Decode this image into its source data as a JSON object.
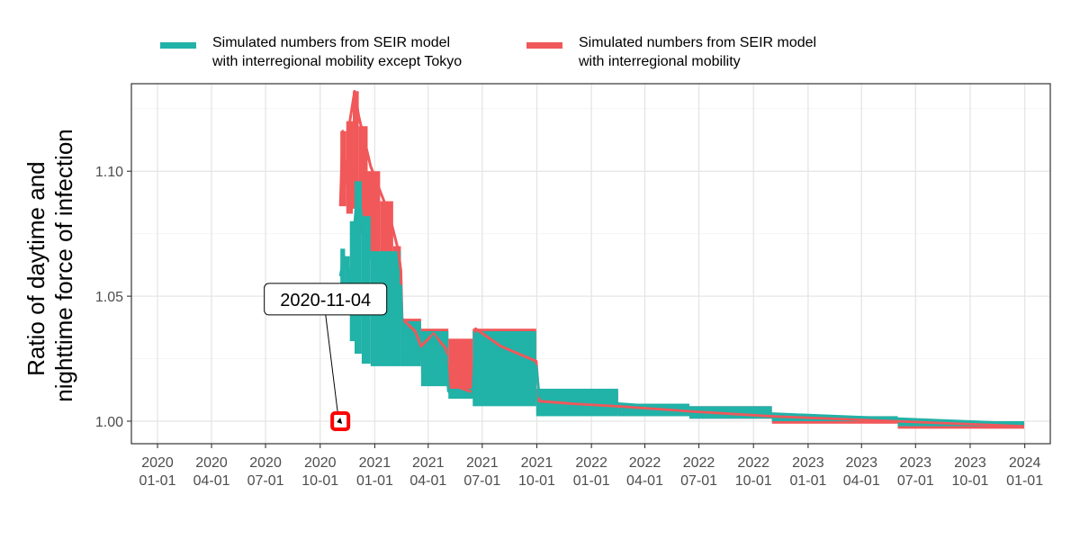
{
  "chart_data": {
    "type": "line",
    "ylabel_lines": [
      "Ratio of daytime and",
      "nighttime force of infection"
    ],
    "xlabel": "",
    "ylim": [
      0.991,
      1.135
    ],
    "xlim": [
      "2019-11-18",
      "2024-02-13"
    ],
    "grid": true,
    "legend_position": "top",
    "yticks": [
      {
        "value": 1.0,
        "label": "1.00"
      },
      {
        "value": 1.05,
        "label": "1.05"
      },
      {
        "value": 1.1,
        "label": "1.10"
      }
    ],
    "xticks": [
      {
        "date": "2020-01-01",
        "label": [
          "2020",
          "01-01"
        ]
      },
      {
        "date": "2020-04-01",
        "label": [
          "2020",
          "04-01"
        ]
      },
      {
        "date": "2020-07-01",
        "label": [
          "2020",
          "07-01"
        ]
      },
      {
        "date": "2020-10-01",
        "label": [
          "2020",
          "10-01"
        ]
      },
      {
        "date": "2021-01-01",
        "label": [
          "2021",
          "01-01"
        ]
      },
      {
        "date": "2021-04-01",
        "label": [
          "2021",
          "04-01"
        ]
      },
      {
        "date": "2021-07-01",
        "label": [
          "2021",
          "07-01"
        ]
      },
      {
        "date": "2021-10-01",
        "label": [
          "2021",
          "10-01"
        ]
      },
      {
        "date": "2022-01-01",
        "label": [
          "2022",
          "01-01"
        ]
      },
      {
        "date": "2022-04-01",
        "label": [
          "2022",
          "04-01"
        ]
      },
      {
        "date": "2022-07-01",
        "label": [
          "2022",
          "07-01"
        ]
      },
      {
        "date": "2022-10-01",
        "label": [
          "2022",
          "10-01"
        ]
      },
      {
        "date": "2023-01-01",
        "label": [
          "2023",
          "01-01"
        ]
      },
      {
        "date": "2023-04-01",
        "label": [
          "2023",
          "04-01"
        ]
      },
      {
        "date": "2023-07-01",
        "label": [
          "2023",
          "07-01"
        ]
      },
      {
        "date": "2023-10-01",
        "label": [
          "2023",
          "10-01"
        ]
      },
      {
        "date": "2024-01-01",
        "label": [
          "2024",
          "01-01"
        ]
      }
    ],
    "series": [
      {
        "name_lines": [
          "Simulated numbers from SEIR model",
          "with interregional mobility"
        ],
        "color": "#F0585A",
        "bands": [
          {
            "start": "2020-11-04",
            "end": "2020-11-14",
            "low": 1.086,
            "high": 1.116
          },
          {
            "start": "2020-11-14",
            "end": "2020-11-25",
            "low": 1.083,
            "high": 1.12
          },
          {
            "start": "2020-11-25",
            "end": "2020-12-05",
            "low": 1.085,
            "high": 1.132
          },
          {
            "start": "2020-12-05",
            "end": "2020-12-20",
            "low": 1.075,
            "high": 1.118
          },
          {
            "start": "2020-12-20",
            "end": "2021-01-10",
            "low": 1.066,
            "high": 1.1
          },
          {
            "start": "2021-01-10",
            "end": "2021-02-01",
            "low": 1.06,
            "high": 1.088
          },
          {
            "start": "2021-02-01",
            "end": "2021-02-14",
            "low": 1.058,
            "high": 1.07
          },
          {
            "start": "2021-02-14",
            "end": "2021-03-20",
            "low": 1.024,
            "high": 1.041
          },
          {
            "start": "2021-03-20",
            "end": "2021-05-05",
            "low": 1.019,
            "high": 1.037
          },
          {
            "start": "2021-05-05",
            "end": "2021-06-15",
            "low": 1.011,
            "high": 1.033
          },
          {
            "start": "2021-06-15",
            "end": "2021-09-30",
            "low": 1.009,
            "high": 1.037
          },
          {
            "start": "2021-09-30",
            "end": "2022-02-15",
            "low": 1.003,
            "high": 1.012
          },
          {
            "start": "2022-02-15",
            "end": "2022-06-15",
            "low": 1.002,
            "high": 1.007
          },
          {
            "start": "2022-06-15",
            "end": "2022-11-01",
            "low": 1.001,
            "high": 1.006
          },
          {
            "start": "2022-11-01",
            "end": "2023-06-01",
            "low": 0.999,
            "high": 1.002
          },
          {
            "start": "2023-06-01",
            "end": "2023-12-31",
            "low": 0.997,
            "high": 1.0
          }
        ],
        "points": [
          {
            "date": "2020-11-04",
            "value": 1.086
          },
          {
            "date": "2020-11-08",
            "value": 1.116
          },
          {
            "date": "2020-11-14",
            "value": 1.095
          },
          {
            "date": "2020-11-20",
            "value": 1.12
          },
          {
            "date": "2020-11-28",
            "value": 1.132
          },
          {
            "date": "2020-12-05",
            "value": 1.122
          },
          {
            "date": "2020-12-15",
            "value": 1.112
          },
          {
            "date": "2020-12-25",
            "value": 1.102
          },
          {
            "date": "2021-01-10",
            "value": 1.092
          },
          {
            "date": "2021-01-25",
            "value": 1.083
          },
          {
            "date": "2021-02-10",
            "value": 1.068
          },
          {
            "date": "2021-02-14",
            "value": 1.06
          },
          {
            "date": "2021-02-16",
            "value": 1.041
          },
          {
            "date": "2021-03-10",
            "value": 1.036
          },
          {
            "date": "2021-03-20",
            "value": 1.03
          },
          {
            "date": "2021-04-10",
            "value": 1.035
          },
          {
            "date": "2021-05-01",
            "value": 1.029
          },
          {
            "date": "2021-05-05",
            "value": 1.015
          },
          {
            "date": "2021-06-10",
            "value": 1.012
          },
          {
            "date": "2021-06-15",
            "value": 1.011
          },
          {
            "date": "2021-06-20",
            "value": 1.037
          },
          {
            "date": "2021-08-01",
            "value": 1.03
          },
          {
            "date": "2021-09-30",
            "value": 1.024
          },
          {
            "date": "2021-10-05",
            "value": 1.008
          },
          {
            "date": "2021-12-01",
            "value": 1.007
          },
          {
            "date": "2022-02-15",
            "value": 1.006
          },
          {
            "date": "2022-06-15",
            "value": 1.004
          },
          {
            "date": "2022-11-01",
            "value": 1.002
          },
          {
            "date": "2023-06-01",
            "value": 1.0
          },
          {
            "date": "2023-12-31",
            "value": 0.998
          }
        ]
      },
      {
        "name_lines": [
          "Simulated numbers from SEIR model",
          "with interregional mobility except Tokyo"
        ],
        "color": "#21B2A8",
        "bands": [
          {
            "start": "2020-11-04",
            "end": "2020-11-12",
            "low": 1.052,
            "high": 1.069
          },
          {
            "start": "2020-11-12",
            "end": "2020-11-20",
            "low": 1.044,
            "high": 1.066
          },
          {
            "start": "2020-11-20",
            "end": "2020-11-28",
            "low": 1.032,
            "high": 1.08
          },
          {
            "start": "2020-11-28",
            "end": "2020-12-10",
            "low": 1.027,
            "high": 1.096
          },
          {
            "start": "2020-12-10",
            "end": "2020-12-25",
            "low": 1.023,
            "high": 1.082
          },
          {
            "start": "2020-12-25",
            "end": "2021-02-14",
            "low": 1.022,
            "high": 1.068
          },
          {
            "start": "2021-02-14",
            "end": "2021-03-20",
            "low": 1.022,
            "high": 1.04
          },
          {
            "start": "2021-03-20",
            "end": "2021-05-05",
            "low": 1.014,
            "high": 1.036
          },
          {
            "start": "2021-05-05",
            "end": "2021-06-15",
            "low": 1.009,
            "high": 1.013
          },
          {
            "start": "2021-06-15",
            "end": "2021-09-30",
            "low": 1.006,
            "high": 1.036
          },
          {
            "start": "2021-09-30",
            "end": "2022-02-15",
            "low": 1.002,
            "high": 1.013
          },
          {
            "start": "2022-02-15",
            "end": "2022-06-15",
            "low": 1.002,
            "high": 1.007
          },
          {
            "start": "2022-06-15",
            "end": "2022-11-01",
            "low": 1.001,
            "high": 1.006
          },
          {
            "start": "2022-11-01",
            "end": "2023-06-01",
            "low": 1.0,
            "high": 1.002
          },
          {
            "start": "2023-06-01",
            "end": "2023-12-31",
            "low": 0.998,
            "high": 1.0
          }
        ],
        "points": [
          {
            "date": "2020-11-04",
            "value": 1.058
          },
          {
            "date": "2020-11-10",
            "value": 1.066
          },
          {
            "date": "2020-11-20",
            "value": 1.054
          },
          {
            "date": "2020-11-26",
            "value": 1.072
          },
          {
            "date": "2020-12-03",
            "value": 1.094
          },
          {
            "date": "2020-12-12",
            "value": 1.078
          },
          {
            "date": "2020-12-25",
            "value": 1.066
          },
          {
            "date": "2021-01-15",
            "value": 1.058
          },
          {
            "date": "2021-02-14",
            "value": 1.054
          },
          {
            "date": "2021-02-16",
            "value": 1.039
          },
          {
            "date": "2021-03-10",
            "value": 1.033
          },
          {
            "date": "2021-03-20",
            "value": 1.026
          },
          {
            "date": "2021-04-10",
            "value": 1.034
          },
          {
            "date": "2021-05-01",
            "value": 1.026
          },
          {
            "date": "2021-05-05",
            "value": 1.012
          },
          {
            "date": "2021-06-10",
            "value": 1.011
          },
          {
            "date": "2021-06-15",
            "value": 1.01
          },
          {
            "date": "2021-06-20",
            "value": 1.035
          },
          {
            "date": "2021-08-01",
            "value": 1.028
          },
          {
            "date": "2021-09-30",
            "value": 1.022
          },
          {
            "date": "2021-10-05",
            "value": 1.01
          },
          {
            "date": "2021-12-01",
            "value": 1.008
          },
          {
            "date": "2022-02-15",
            "value": 1.007
          },
          {
            "date": "2022-06-15",
            "value": 1.005
          },
          {
            "date": "2022-11-01",
            "value": 1.003
          },
          {
            "date": "2023-06-01",
            "value": 1.001
          },
          {
            "date": "2023-12-31",
            "value": 0.999
          }
        ]
      }
    ],
    "annotation": {
      "label": "2020-11-04",
      "date": "2020-11-04",
      "value": 1.0,
      "label_date": "2020-10-10",
      "label_value": 1.049,
      "marker_color": "#FF0000"
    }
  }
}
